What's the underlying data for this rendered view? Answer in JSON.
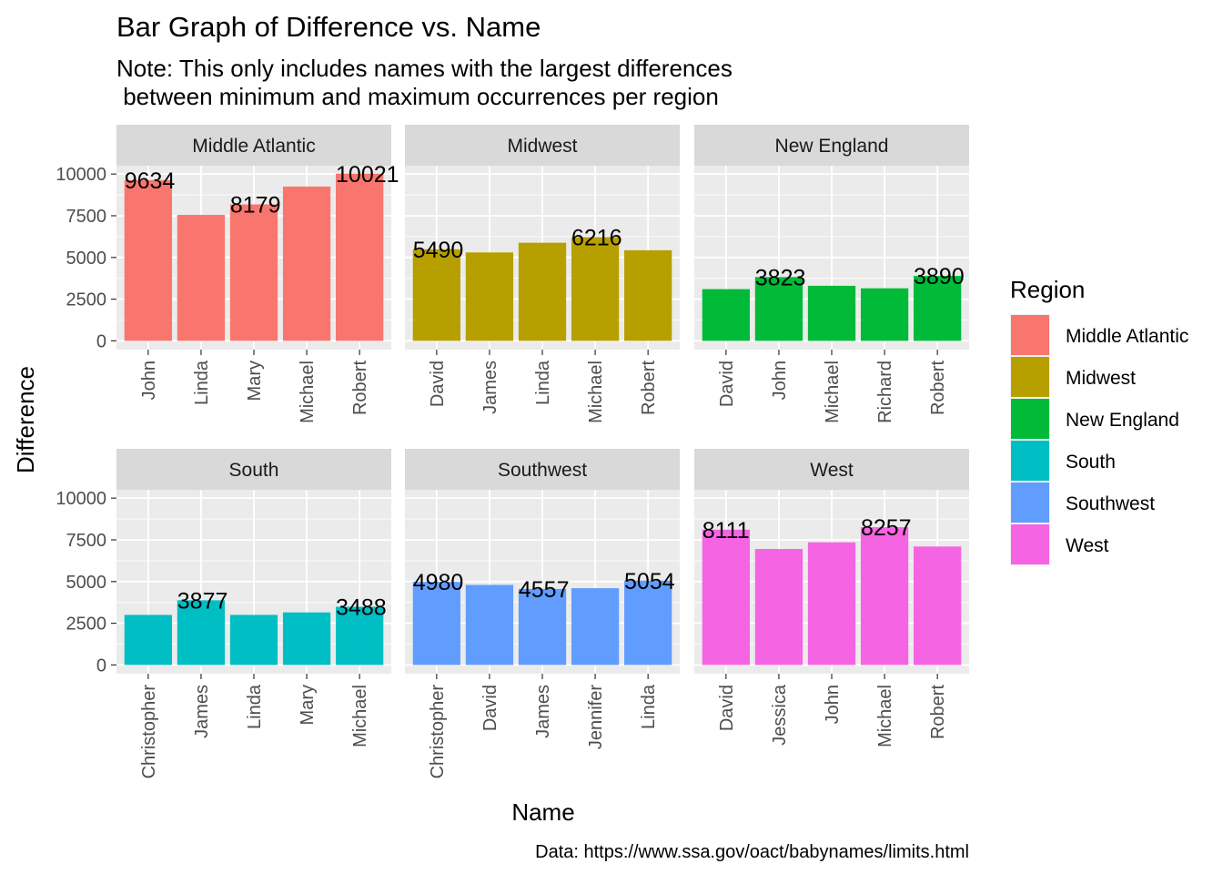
{
  "chart_data": {
    "type": "bar",
    "title": "Bar Graph of Difference vs. Name",
    "subtitle_lines": [
      "Note: This only includes names with the largest differences",
      " between minimum and maximum occurrences per region"
    ],
    "xlabel": "Name",
    "ylabel": "Difference",
    "caption": "Data: https://www.ssa.gov/oact/babynames/limits.html",
    "ylim": [
      0,
      10500
    ],
    "yticks": [
      0,
      2500,
      5000,
      7500,
      10000
    ],
    "grid": true,
    "legend": {
      "title": "Region",
      "placement": "right",
      "entries": [
        "Middle Atlantic",
        "Midwest",
        "New England",
        "South",
        "Southwest",
        "West"
      ]
    },
    "facets": [
      {
        "region": "Middle Atlantic",
        "color": "#F8766D",
        "categories": [
          "John",
          "Linda",
          "Mary",
          "Michael",
          "Robert"
        ],
        "values": [
          9634,
          7550,
          8179,
          9250,
          10021
        ],
        "labels": [
          "9634",
          "",
          "8179",
          "",
          "10021"
        ]
      },
      {
        "region": "Midwest",
        "color": "#B79F00",
        "categories": [
          "David",
          "James",
          "Linda",
          "Michael",
          "Robert"
        ],
        "values": [
          5490,
          5300,
          5880,
          6216,
          5430
        ],
        "labels": [
          "5490",
          "",
          "",
          "6216",
          ""
        ]
      },
      {
        "region": "New England",
        "color": "#00BA38",
        "categories": [
          "David",
          "John",
          "Michael",
          "Richard",
          "Robert"
        ],
        "values": [
          3100,
          3823,
          3300,
          3150,
          3890
        ],
        "labels": [
          "",
          "3823",
          "",
          "",
          "3890"
        ]
      },
      {
        "region": "South",
        "color": "#00BFC4",
        "categories": [
          "Christopher",
          "James",
          "Linda",
          "Mary",
          "Michael"
        ],
        "values": [
          3000,
          3877,
          3000,
          3150,
          3488
        ],
        "labels": [
          "",
          "3877",
          "",
          "",
          "3488"
        ]
      },
      {
        "region": "Southwest",
        "color": "#619CFF",
        "categories": [
          "Christopher",
          "David",
          "James",
          "Jennifer",
          "Linda"
        ],
        "values": [
          4980,
          4800,
          4557,
          4600,
          5054
        ],
        "labels": [
          "4980",
          "",
          "4557",
          "",
          "5054"
        ]
      },
      {
        "region": "West",
        "color": "#F564E3",
        "categories": [
          "David",
          "Jessica",
          "John",
          "Michael",
          "Robert"
        ],
        "values": [
          8111,
          6950,
          7350,
          8257,
          7100
        ],
        "labels": [
          "8111",
          "",
          "",
          "8257",
          ""
        ]
      }
    ]
  }
}
